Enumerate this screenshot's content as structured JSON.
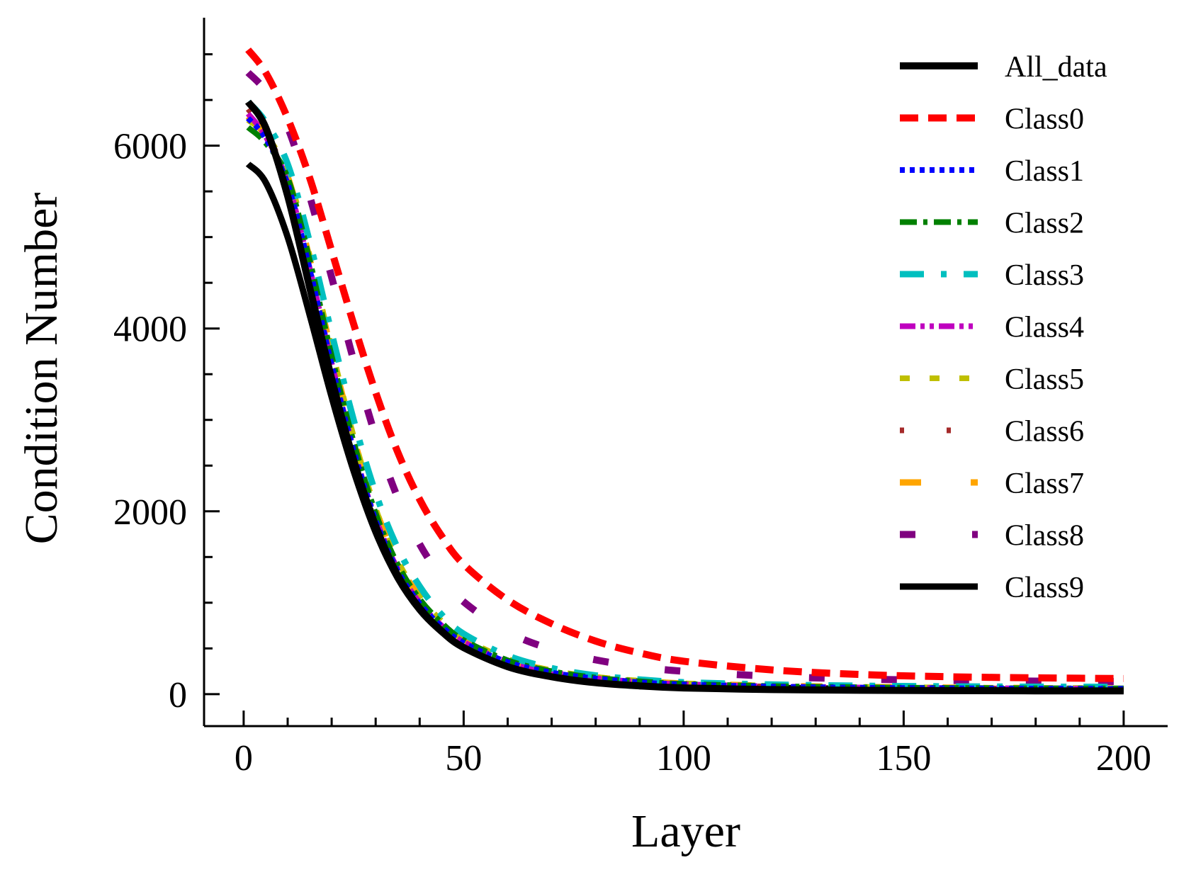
{
  "chart_data": {
    "type": "line",
    "title": "",
    "xlabel": "Layer",
    "ylabel": "Condition Number",
    "xlim": [
      -9,
      210
    ],
    "ylim": [
      -350,
      7400
    ],
    "x_ticks": [
      0,
      50,
      100,
      150,
      200
    ],
    "x_tick_labels": [
      "0",
      "50",
      "100",
      "150",
      "200"
    ],
    "y_ticks": [
      0,
      2000,
      4000,
      6000
    ],
    "y_tick_labels": [
      "0",
      "2000",
      "4000",
      "6000"
    ],
    "grid": false,
    "legend_position": "top-right",
    "x": [
      1,
      5,
      10,
      15,
      20,
      25,
      30,
      35,
      40,
      45,
      50,
      60,
      70,
      80,
      90,
      100,
      120,
      140,
      160,
      180,
      200
    ],
    "series": [
      {
        "name": "All_data",
        "color": "#000000",
        "dash": "solid",
        "width": 10,
        "values": [
          6480,
          6200,
          5450,
          4450,
          3450,
          2560,
          1840,
          1300,
          940,
          690,
          510,
          300,
          190,
          125,
          90,
          68,
          50,
          42,
          38,
          36,
          35
        ]
      },
      {
        "name": "Class0",
        "color": "#ff0000",
        "dash": "dash",
        "width": 10,
        "values": [
          7050,
          6800,
          6300,
          5650,
          4850,
          4050,
          3300,
          2650,
          2130,
          1730,
          1420,
          1030,
          770,
          580,
          450,
          360,
          265,
          215,
          190,
          178,
          170
        ]
      },
      {
        "name": "Class1",
        "color": "#0000ff",
        "dash": "dot",
        "width": 8,
        "values": [
          6300,
          6080,
          5580,
          4650,
          3600,
          2660,
          1900,
          1350,
          990,
          740,
          560,
          350,
          235,
          170,
          130,
          105,
          82,
          70,
          64,
          60,
          58
        ]
      },
      {
        "name": "Class2",
        "color": "#008000",
        "dash": "dashdot",
        "width": 8,
        "values": [
          6200,
          6030,
          5650,
          4750,
          3700,
          2760,
          1980,
          1420,
          1040,
          780,
          590,
          370,
          250,
          180,
          140,
          112,
          88,
          75,
          68,
          64,
          62
        ]
      },
      {
        "name": "Class3",
        "color": "#00bfbf",
        "dash": "dashdotsparse",
        "width": 9,
        "values": [
          6480,
          6260,
          5800,
          4950,
          3950,
          3000,
          2200,
          1600,
          1180,
          870,
          660,
          420,
          285,
          205,
          160,
          130,
          105,
          92,
          85,
          81,
          79
        ]
      },
      {
        "name": "Class4",
        "color": "#bf00bf",
        "dash": "dashdotdot",
        "width": 8,
        "values": [
          6350,
          6100,
          5600,
          4660,
          3620,
          2680,
          1920,
          1370,
          1000,
          750,
          570,
          355,
          240,
          172,
          133,
          108,
          85,
          72,
          66,
          62,
          60
        ]
      },
      {
        "name": "Class5",
        "color": "#bfbf00",
        "dash": "shortdash",
        "width": 8,
        "values": [
          6280,
          6120,
          5700,
          4800,
          3780,
          2820,
          2030,
          1460,
          1070,
          800,
          610,
          385,
          260,
          188,
          146,
          118,
          92,
          79,
          72,
          68,
          66
        ]
      },
      {
        "name": "Class6",
        "color": "#a52a2a",
        "dash": "sparsedot",
        "width": 8,
        "values": [
          6400,
          6150,
          5600,
          4620,
          3560,
          2620,
          1870,
          1330,
          970,
          725,
          550,
          342,
          230,
          166,
          128,
          104,
          82,
          70,
          64,
          60,
          58
        ]
      },
      {
        "name": "Class7",
        "color": "#ffa500",
        "dash": "longdash",
        "width": 9,
        "values": [
          6320,
          6110,
          5660,
          4760,
          3740,
          2800,
          2020,
          1450,
          1060,
          790,
          600,
          378,
          255,
          184,
          143,
          116,
          91,
          78,
          71,
          67,
          65
        ]
      },
      {
        "name": "Class8",
        "color": "#800080",
        "dash": "sparsedash",
        "width": 10,
        "values": [
          6800,
          6600,
          6200,
          5450,
          4560,
          3650,
          2820,
          2150,
          1640,
          1280,
          1010,
          680,
          490,
          375,
          300,
          250,
          195,
          165,
          150,
          142,
          138
        ]
      },
      {
        "name": "Class9",
        "color": "#000000",
        "dash": "solid",
        "width": 9,
        "values": [
          5800,
          5600,
          5000,
          4150,
          3250,
          2440,
          1770,
          1270,
          920,
          680,
          505,
          310,
          205,
          145,
          110,
          88,
          68,
          58,
          52,
          49,
          48
        ]
      }
    ]
  }
}
